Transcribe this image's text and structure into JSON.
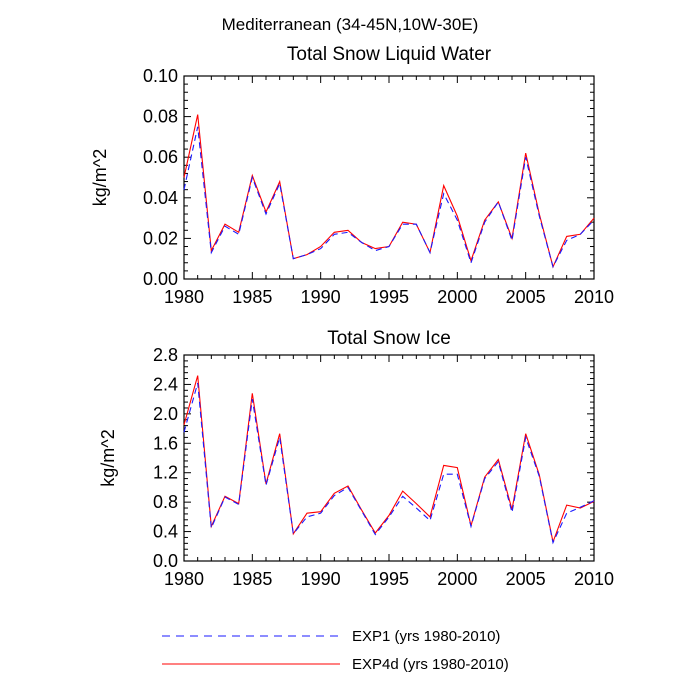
{
  "figure_title": "Mediterranean (34-45N,10W-30E)",
  "legend": [
    {
      "label": "EXP1 (yrs 1980-2010)",
      "color": "#1a1aff",
      "dash": "dashed"
    },
    {
      "label": "EXP4d (yrs 1980-2010)",
      "color": "#ff0000",
      "dash": "solid"
    }
  ],
  "chart_data": [
    {
      "type": "line",
      "title": "Total Snow Liquid Water",
      "xlabel": "",
      "ylabel": "kg/m^2",
      "xlim": [
        1980,
        2010
      ],
      "ylim": [
        0.0,
        0.1
      ],
      "xticks": [
        1980,
        1985,
        1990,
        1995,
        2000,
        2005,
        2010
      ],
      "yticks": [
        0.0,
        0.02,
        0.04,
        0.06,
        0.08,
        0.1
      ],
      "ytick_labels": [
        "0.00",
        "0.02",
        "0.04",
        "0.06",
        "0.08",
        "0.10"
      ],
      "x": [
        1980,
        1981,
        1982,
        1983,
        1984,
        1985,
        1986,
        1987,
        1988,
        1989,
        1990,
        1991,
        1992,
        1993,
        1994,
        1995,
        1996,
        1997,
        1998,
        1999,
        2000,
        2001,
        2002,
        2003,
        2004,
        2005,
        2006,
        2007,
        2008,
        2009,
        2010
      ],
      "series": [
        {
          "name": "EXP1 (yrs 1980-2010)",
          "color": "#1a1aff",
          "dash": "dashed",
          "values": [
            0.044,
            0.075,
            0.013,
            0.026,
            0.022,
            0.05,
            0.032,
            0.047,
            0.01,
            0.012,
            0.015,
            0.022,
            0.023,
            0.018,
            0.014,
            0.016,
            0.027,
            0.027,
            0.013,
            0.042,
            0.029,
            0.008,
            0.028,
            0.038,
            0.019,
            0.06,
            0.031,
            0.006,
            0.019,
            0.022,
            0.029
          ]
        },
        {
          "name": "EXP4d (yrs 1980-2010)",
          "color": "#ff0000",
          "dash": "solid",
          "values": [
            0.05,
            0.081,
            0.014,
            0.027,
            0.023,
            0.051,
            0.033,
            0.048,
            0.01,
            0.012,
            0.016,
            0.023,
            0.024,
            0.018,
            0.015,
            0.016,
            0.028,
            0.027,
            0.013,
            0.046,
            0.031,
            0.009,
            0.029,
            0.038,
            0.02,
            0.062,
            0.032,
            0.006,
            0.021,
            0.022,
            0.03
          ]
        }
      ]
    },
    {
      "type": "line",
      "title": "Total Snow Ice",
      "xlabel": "",
      "ylabel": "kg/m^2",
      "xlim": [
        1980,
        2010
      ],
      "ylim": [
        0.0,
        2.8
      ],
      "xticks": [
        1980,
        1985,
        1990,
        1995,
        2000,
        2005,
        2010
      ],
      "yticks": [
        0.0,
        0.4,
        0.8,
        1.2,
        1.6,
        2.0,
        2.4,
        2.8
      ],
      "ytick_labels": [
        "0.0",
        "0.4",
        "0.8",
        "1.2",
        "1.6",
        "2.0",
        "2.4",
        "2.8"
      ],
      "x": [
        1980,
        1981,
        1982,
        1983,
        1984,
        1985,
        1986,
        1987,
        1988,
        1989,
        1990,
        1991,
        1992,
        1993,
        1994,
        1995,
        1996,
        1997,
        1998,
        1999,
        2000,
        2001,
        2002,
        2003,
        2004,
        2005,
        2006,
        2007,
        2008,
        2009,
        2010
      ],
      "series": [
        {
          "name": "EXP1 (yrs 1980-2010)",
          "color": "#1a1aff",
          "dash": "dashed",
          "values": [
            1.75,
            2.42,
            0.45,
            0.87,
            0.77,
            2.2,
            1.03,
            1.68,
            0.37,
            0.6,
            0.65,
            0.89,
            1.0,
            0.68,
            0.36,
            0.6,
            0.88,
            0.72,
            0.55,
            1.18,
            1.18,
            0.47,
            1.12,
            1.35,
            0.66,
            1.68,
            1.15,
            0.25,
            0.65,
            0.73,
            0.82
          ]
        },
        {
          "name": "EXP4d (yrs 1980-2010)",
          "color": "#ff0000",
          "dash": "solid",
          "values": [
            1.85,
            2.52,
            0.47,
            0.88,
            0.78,
            2.28,
            1.05,
            1.73,
            0.37,
            0.65,
            0.67,
            0.92,
            1.02,
            0.69,
            0.38,
            0.62,
            0.95,
            0.78,
            0.6,
            1.3,
            1.27,
            0.48,
            1.14,
            1.38,
            0.7,
            1.73,
            1.17,
            0.26,
            0.76,
            0.72,
            0.81
          ]
        }
      ]
    }
  ]
}
